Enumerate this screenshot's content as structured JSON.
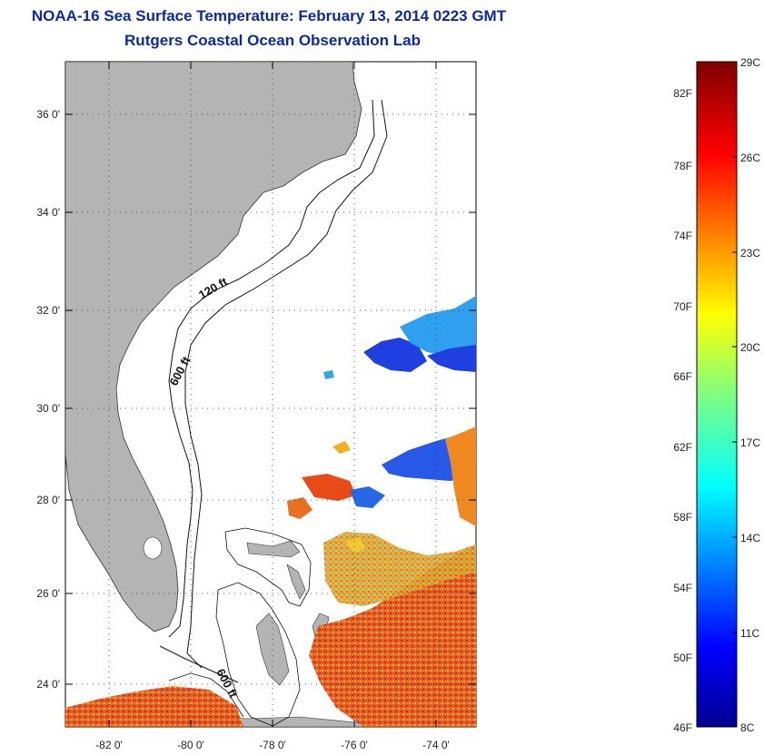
{
  "title": {
    "line1": "NOAA-16 Sea Surface Temperature:  February 13, 2014 0223 GMT",
    "line2": "Rutgers Coastal Ocean Observation Lab"
  },
  "map": {
    "lat_ticks": [
      "36 0'",
      "34 0'",
      "32 0'",
      "30 0'",
      "28 0'",
      "26 0'",
      "24 0'"
    ],
    "lat_values": [
      36,
      34,
      32,
      30,
      28,
      26,
      24
    ],
    "lon_ticks": [
      "-82 0'",
      "-80 0'",
      "-78 0'",
      "-76 0'",
      "-74 0'"
    ],
    "lon_values": [
      -82,
      -80,
      -78,
      -76,
      -74
    ],
    "lon_range": [
      -83,
      -73
    ],
    "lat_range": [
      23,
      37
    ],
    "contour_labels": [
      "120 ft",
      "600 ft",
      "600 ft"
    ],
    "land_color": "#b4b4b4",
    "grid": "dotted"
  },
  "colorbar": {
    "fahrenheit": [
      "82F",
      "78F",
      "74F",
      "70F",
      "66F",
      "62F",
      "58F",
      "54F",
      "50F",
      "46F"
    ],
    "celsius": [
      "29C",
      "26C",
      "23C",
      "20C",
      "17C",
      "14C",
      "11C",
      "8C"
    ],
    "range_c": [
      8,
      29
    ]
  }
}
